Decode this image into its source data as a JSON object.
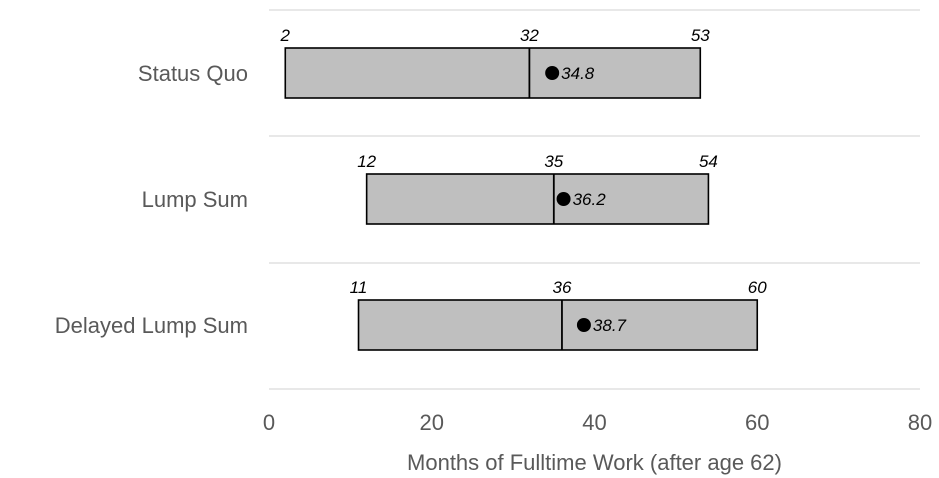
{
  "chart_data": {
    "type": "box",
    "orientation": "horizontal",
    "title": "",
    "xlabel": "Months of Fulltime Work (after age 62)",
    "ylabel": "",
    "xlim": [
      0,
      80
    ],
    "x_ticks": [
      "0",
      "20",
      "40",
      "60",
      "80"
    ],
    "grid": true,
    "legend": "none",
    "categories": [
      "Status Quo",
      "Lump Sum",
      "Delayed Lump Sum"
    ],
    "series": [
      {
        "category": "Status Quo",
        "low": 2,
        "median": 32,
        "high": 53,
        "mean": 34.8,
        "low_label": "2",
        "median_label": "32",
        "high_label": "53",
        "mean_label": "34.8"
      },
      {
        "category": "Lump Sum",
        "low": 12,
        "median": 35,
        "high": 54,
        "mean": 36.2,
        "low_label": "12",
        "median_label": "35",
        "high_label": "54",
        "mean_label": "36.2"
      },
      {
        "category": "Delayed Lump Sum",
        "low": 11,
        "median": 36,
        "high": 60,
        "mean": 38.7,
        "low_label": "11",
        "median_label": "36",
        "high_label": "60",
        "mean_label": "38.7"
      }
    ],
    "colors": {
      "box_fill": "#bfbfbf",
      "box_stroke": "#000000",
      "gridline": "#d9d9d9",
      "mean_marker": "#000000",
      "text": "#595959"
    }
  }
}
